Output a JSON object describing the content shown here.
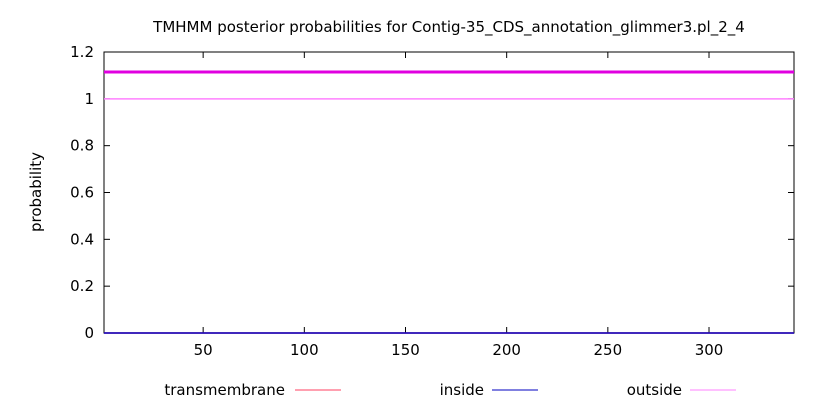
{
  "chart_data": {
    "type": "line",
    "title": "TMHMM posterior probabilities for Contig-35_CDS_annotation_glimmer3.pl_2_4",
    "xlabel": "",
    "ylabel": "probability",
    "xlim": [
      1,
      342
    ],
    "ylim": [
      0,
      1.2
    ],
    "xticks": [
      50,
      100,
      150,
      200,
      250,
      300
    ],
    "yticks": [
      0,
      0.2,
      0.4,
      0.6,
      0.8,
      1,
      1.2
    ],
    "ytick_labels": [
      "0",
      "0.2",
      "0.4",
      "0.6",
      "0.8",
      "1",
      "1.2"
    ],
    "grid": false,
    "legend_position": "bottom",
    "series": [
      {
        "name": "transmembrane",
        "color": "#ff4060",
        "x": [
          1,
          342
        ],
        "y": [
          0,
          0
        ]
      },
      {
        "name": "inside",
        "color": "#0000c0",
        "x": [
          1,
          342
        ],
        "y": [
          0,
          0
        ]
      },
      {
        "name": "outside",
        "color": "#ff80ff",
        "x": [
          1,
          342
        ],
        "y": [
          1,
          1
        ]
      }
    ],
    "topology_bar": {
      "label": "outside",
      "color": "#e000e0",
      "x_range": [
        1,
        342
      ]
    }
  }
}
